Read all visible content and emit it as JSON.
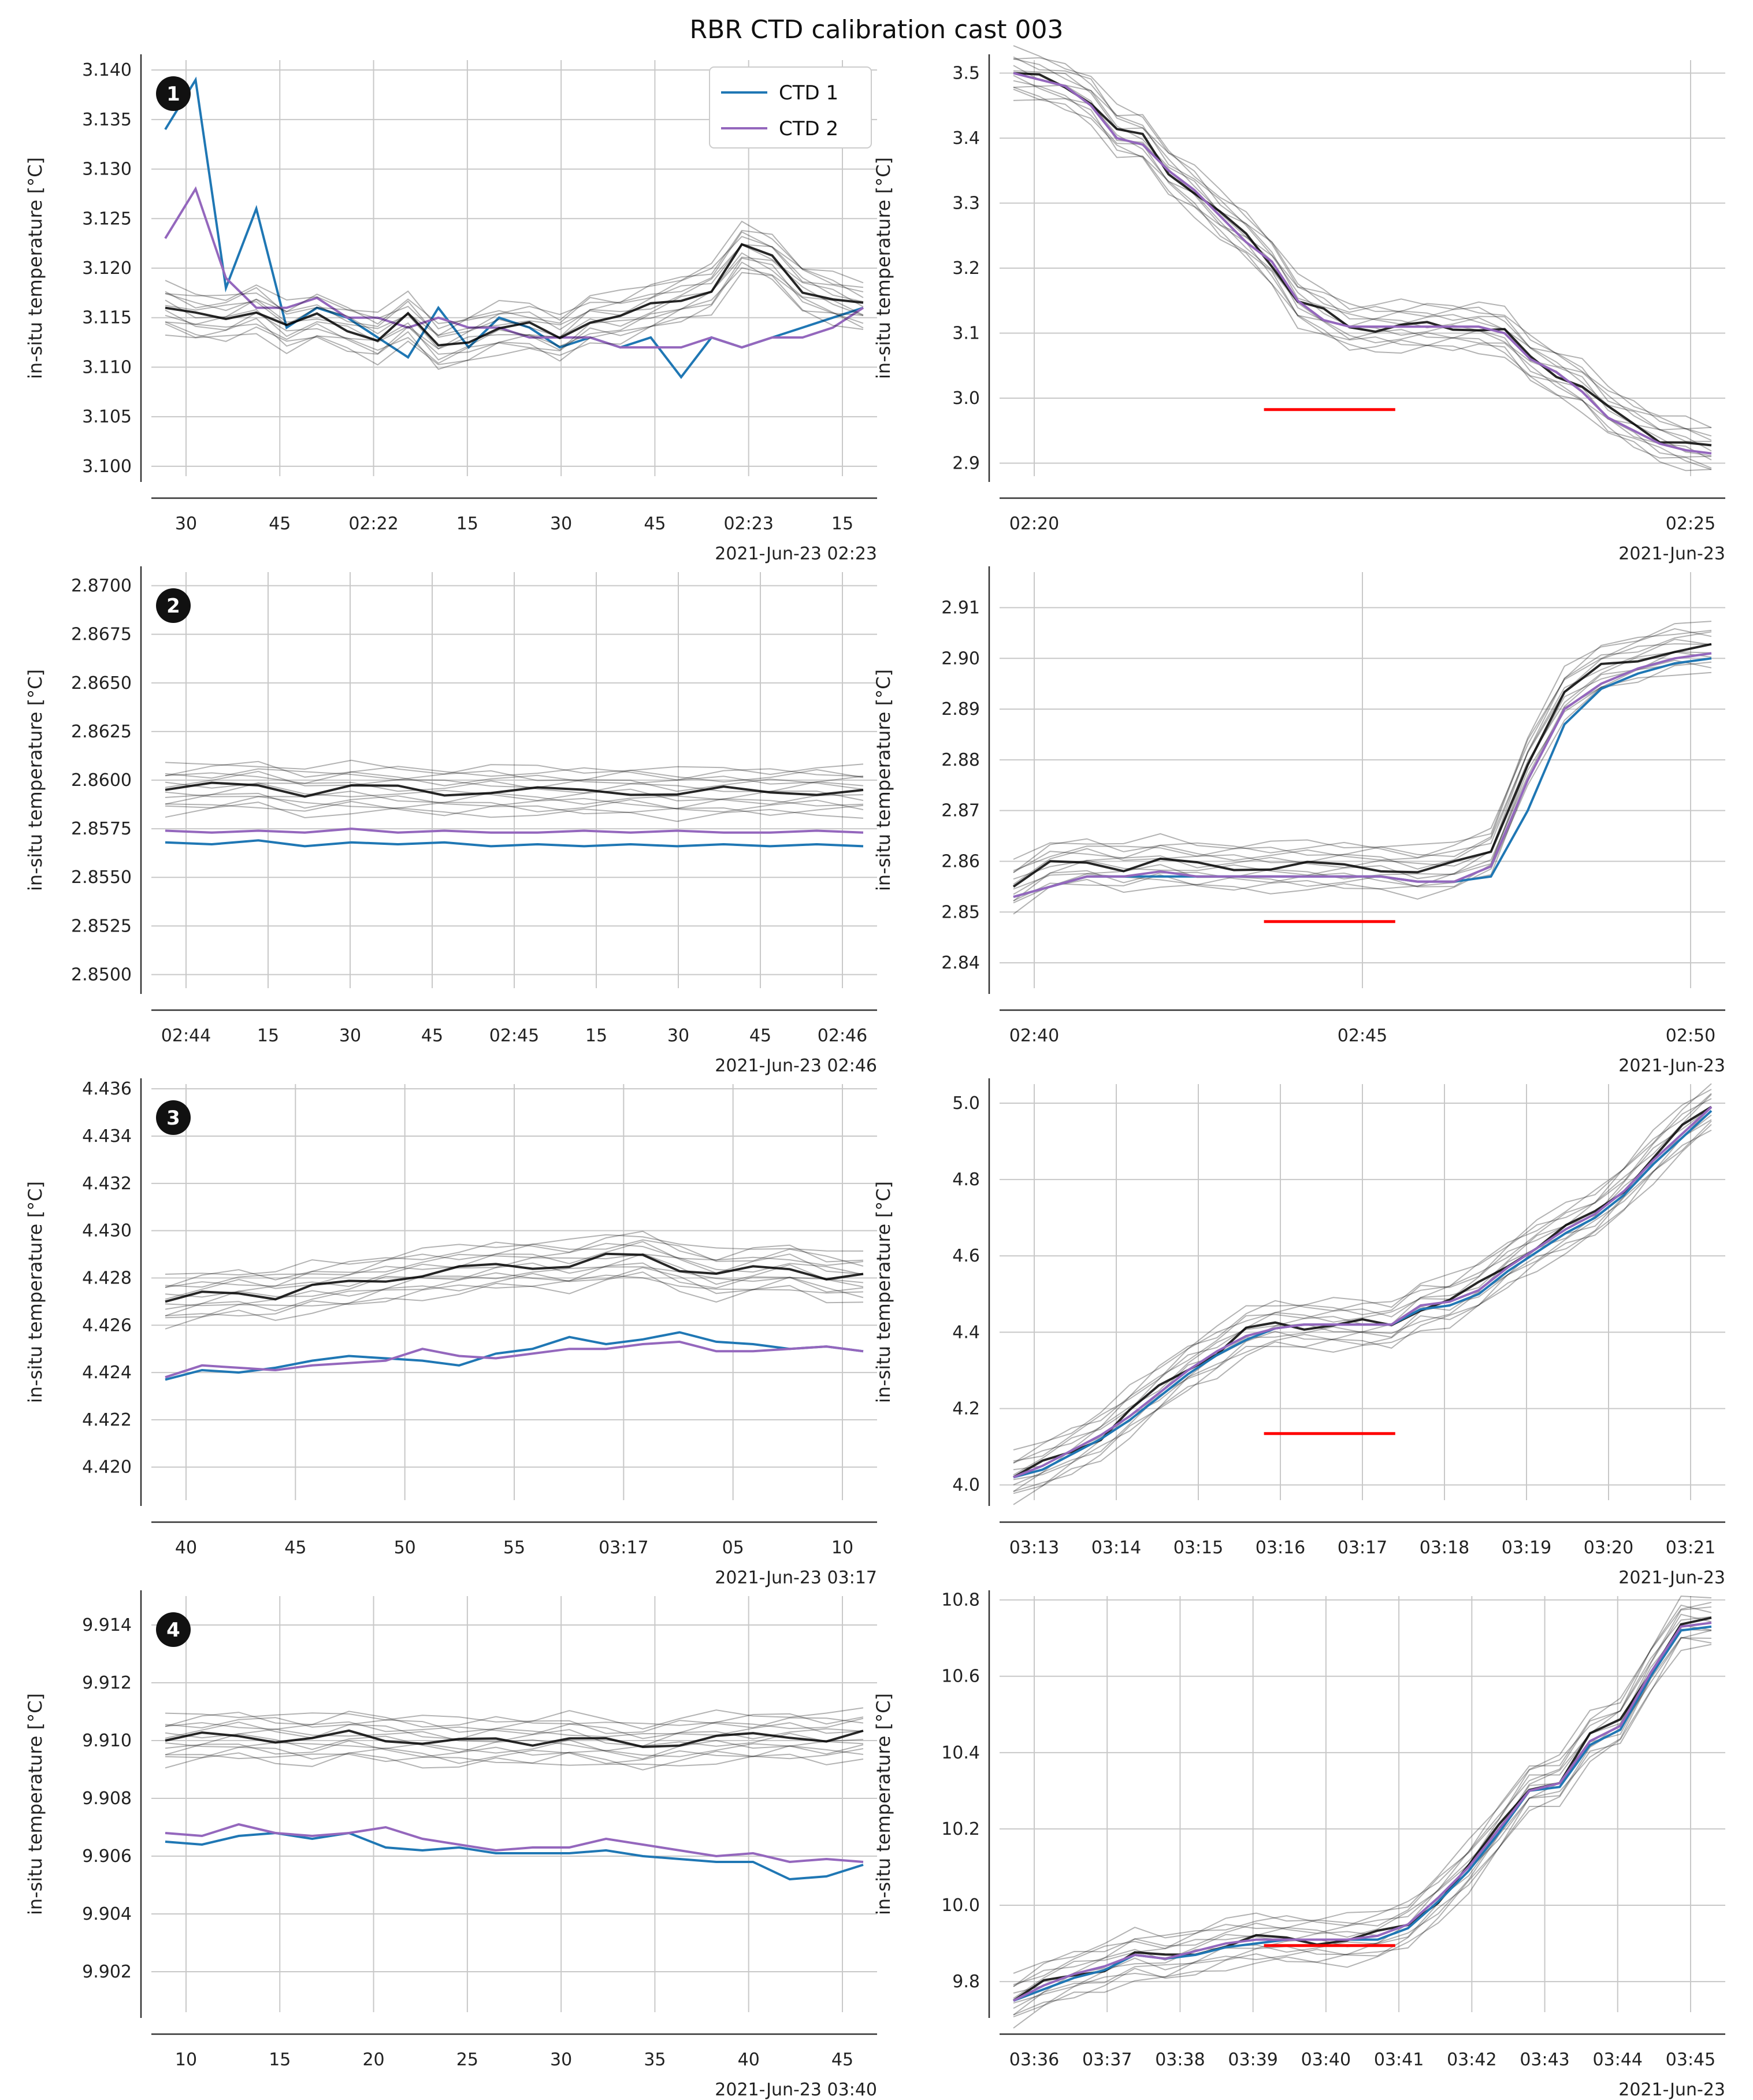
{
  "title": "RBR CTD calibration cast 003",
  "colors": {
    "ctd1": "#1f77b4",
    "ctd2": "#9467bd",
    "ref": "#000000",
    "window": "#ff0000",
    "grid": "#c8c8c8"
  },
  "legend": {
    "items": [
      "CTD 1",
      "CTD 2"
    ],
    "placement": "top-right of panel 1 left"
  },
  "chart_data": [
    {
      "type": "line",
      "panel": "1-left",
      "badge": "1",
      "ylabel": "in-situ temperature [°C]",
      "yticks": [
        "3.100",
        "3.105",
        "3.110",
        "3.115",
        "3.120",
        "3.125",
        "3.130",
        "3.135",
        "3.140"
      ],
      "ylim": [
        3.099,
        3.141
      ],
      "xticks": [
        "30",
        "45",
        "02:22",
        "15",
        "30",
        "45",
        "02:23",
        "15"
      ],
      "offset_label": "2021-Jun-23 02:23",
      "series": [
        {
          "name": "CTD 1",
          "values": [
            3.134,
            3.139,
            3.118,
            3.126,
            3.114,
            3.116,
            3.115,
            3.113,
            3.111,
            3.116,
            3.112,
            3.115,
            3.114,
            3.112,
            3.113,
            3.112,
            3.113,
            3.109,
            3.113,
            3.112,
            3.113,
            3.114,
            3.115,
            3.116
          ]
        },
        {
          "name": "CTD 2",
          "values": [
            3.123,
            3.128,
            3.119,
            3.116,
            3.116,
            3.117,
            3.115,
            3.115,
            3.114,
            3.115,
            3.114,
            3.114,
            3.113,
            3.113,
            3.113,
            3.112,
            3.112,
            3.112,
            3.113,
            3.112,
            3.113,
            3.113,
            3.114,
            3.116
          ]
        },
        {
          "name": "",
          "values": [
            3.116,
            3.115,
            3.115,
            3.116,
            3.114,
            3.115,
            3.114,
            3.113,
            3.115,
            3.112,
            3.113,
            3.114,
            3.114,
            3.113,
            3.115,
            3.115,
            3.116,
            3.117,
            3.118,
            3.122,
            3.121,
            3.118,
            3.117,
            3.116
          ]
        }
      ]
    },
    {
      "type": "line",
      "panel": "1-right",
      "ylabel": "in-situ temperature [°C]",
      "yticks": [
        "2.9",
        "3.0",
        "3.1",
        "3.2",
        "3.3",
        "3.4",
        "3.5"
      ],
      "ylim": [
        2.88,
        3.52
      ],
      "xticks": [
        "02:20",
        "02:25"
      ],
      "offset_label": "2021-Jun-23",
      "window": [
        2.3,
        2.1
      ],
      "series": [
        {
          "name": "",
          "values": [
            3.5,
            3.49,
            3.48,
            3.46,
            3.41,
            3.4,
            3.35,
            3.32,
            3.28,
            3.25,
            3.21,
            3.15,
            3.13,
            3.11,
            3.11,
            3.11,
            3.11,
            3.11,
            3.11,
            3.1,
            3.06,
            3.04,
            3.02,
            2.98,
            2.96,
            2.94,
            2.93,
            2.92
          ]
        },
        {
          "name": "CTD 2",
          "values": [
            3.5,
            3.49,
            3.48,
            3.45,
            3.4,
            3.39,
            3.35,
            3.32,
            3.28,
            3.24,
            3.21,
            3.15,
            3.12,
            3.11,
            3.11,
            3.11,
            3.11,
            3.11,
            3.11,
            3.1,
            3.06,
            3.04,
            3.01,
            2.97,
            2.95,
            2.93,
            2.92,
            2.915
          ]
        }
      ]
    },
    {
      "type": "line",
      "panel": "2-left",
      "badge": "2",
      "ylabel": "in-situ temperature [°C]",
      "yticks": [
        "2.8500",
        "2.8525",
        "2.8550",
        "2.8575",
        "2.8600",
        "2.8625",
        "2.8650",
        "2.8675",
        "2.8700"
      ],
      "ylim": [
        2.8493,
        2.8707
      ],
      "xticks": [
        "02:44",
        "15",
        "30",
        "45",
        "02:45",
        "15",
        "30",
        "45",
        "02:46"
      ],
      "offset_label": "2021-Jun-23 02:46",
      "series": [
        {
          "name": "CTD 1",
          "values": [
            2.8568,
            2.8567,
            2.8569,
            2.8566,
            2.8568,
            2.8567,
            2.8568,
            2.8566,
            2.8567,
            2.8566,
            2.8567,
            2.8566,
            2.8567,
            2.8566,
            2.8567,
            2.8566
          ]
        },
        {
          "name": "CTD 2",
          "values": [
            2.8574,
            2.8573,
            2.8574,
            2.8573,
            2.8575,
            2.8573,
            2.8574,
            2.8573,
            2.8573,
            2.8574,
            2.8573,
            2.8574,
            2.8573,
            2.8573,
            2.8574,
            2.8573
          ]
        },
        {
          "name": "",
          "values": [
            2.8595,
            2.8596,
            2.8598,
            2.8594,
            2.8596,
            2.8595,
            2.8594,
            2.8595,
            2.8594,
            2.8594,
            2.8595,
            2.8593,
            2.8594,
            2.8594,
            2.8595,
            2.8594
          ]
        }
      ]
    },
    {
      "type": "line",
      "panel": "2-right",
      "ylabel": "in-situ temperature [°C]",
      "yticks": [
        "2.84",
        "2.85",
        "2.86",
        "2.87",
        "2.88",
        "2.89",
        "2.90",
        "2.91"
      ],
      "ylim": [
        2.835,
        2.917
      ],
      "xticks": [
        "02:40",
        "02:45",
        "02:50"
      ],
      "offset_label": "2021-Jun-23",
      "window": [
        4.0,
        6.0
      ],
      "series": [
        {
          "name": "",
          "values": [
            2.855,
            2.859,
            2.86,
            2.859,
            2.86,
            2.859,
            2.859,
            2.859,
            2.859,
            2.859,
            2.859,
            2.858,
            2.859,
            2.862,
            2.88,
            2.893,
            2.898,
            2.9,
            2.902,
            2.902
          ]
        },
        {
          "name": "CTD 1",
          "values": [
            2.853,
            2.855,
            2.857,
            2.857,
            2.857,
            2.857,
            2.857,
            2.857,
            2.857,
            2.857,
            2.857,
            2.856,
            2.856,
            2.857,
            2.87,
            2.887,
            2.894,
            2.897,
            2.899,
            2.9
          ]
        },
        {
          "name": "CTD 2",
          "values": [
            2.853,
            2.855,
            2.857,
            2.857,
            2.858,
            2.857,
            2.857,
            2.857,
            2.857,
            2.857,
            2.857,
            2.856,
            2.856,
            2.859,
            2.876,
            2.89,
            2.895,
            2.898,
            2.9,
            2.901
          ]
        }
      ]
    },
    {
      "type": "line",
      "panel": "3-left",
      "badge": "3",
      "ylabel": "in-situ temperature [°C]",
      "yticks": [
        "4.420",
        "4.422",
        "4.424",
        "4.426",
        "4.428",
        "4.430",
        "4.432",
        "4.434",
        "4.436"
      ],
      "ylim": [
        4.4186,
        4.4362
      ],
      "xticks": [
        "40",
        "45",
        "50",
        "55",
        "03:17",
        "05",
        "10"
      ],
      "offset_label": "2021-Jun-23 03:17",
      "series": [
        {
          "name": "CTD 1",
          "values": [
            4.4237,
            4.4241,
            4.424,
            4.4242,
            4.4245,
            4.4247,
            4.4246,
            4.4245,
            4.4243,
            4.4248,
            4.425,
            4.4255,
            4.4252,
            4.4254,
            4.4257,
            4.4253,
            4.4252,
            4.425,
            4.4251,
            4.4249
          ]
        },
        {
          "name": "CTD 2",
          "values": [
            4.4238,
            4.4243,
            4.4242,
            4.4241,
            4.4243,
            4.4244,
            4.4245,
            4.425,
            4.4247,
            4.4246,
            4.4248,
            4.425,
            4.425,
            4.4252,
            4.4253,
            4.4249,
            4.4249,
            4.425,
            4.4251,
            4.4249
          ]
        },
        {
          "name": "",
          "values": [
            4.427,
            4.4272,
            4.4274,
            4.4273,
            4.4276,
            4.4277,
            4.428,
            4.4282,
            4.4283,
            4.4285,
            4.4286,
            4.4285,
            4.4288,
            4.429,
            4.4285,
            4.4281,
            4.4283,
            4.4285,
            4.4281,
            4.428
          ]
        }
      ]
    },
    {
      "type": "line",
      "panel": "3-right",
      "ylabel": "in-situ temperature [°C]",
      "yticks": [
        "4.0",
        "4.2",
        "4.4",
        "4.6",
        "4.8",
        "5.0"
      ],
      "ylim": [
        3.96,
        5.05
      ],
      "xticks": [
        "03:13",
        "03:14",
        "03:15",
        "03:16",
        "03:17",
        "03:18",
        "03:19",
        "03:20",
        "03:21"
      ],
      "offset_label": "2021-Jun-23",
      "window": [
        3.7,
        4.2
      ],
      "series": [
        {
          "name": "",
          "values": [
            4.02,
            4.05,
            4.09,
            4.13,
            4.19,
            4.25,
            4.31,
            4.35,
            4.4,
            4.42,
            4.42,
            4.42,
            4.42,
            4.42,
            4.47,
            4.48,
            4.52,
            4.58,
            4.63,
            4.67,
            4.71,
            4.78,
            4.86,
            4.93,
            4.99
          ]
        },
        {
          "name": "CTD 1",
          "values": [
            4.02,
            4.04,
            4.08,
            4.12,
            4.17,
            4.23,
            4.29,
            4.34,
            4.38,
            4.41,
            4.42,
            4.42,
            4.42,
            4.42,
            4.46,
            4.47,
            4.5,
            4.56,
            4.61,
            4.66,
            4.7,
            4.76,
            4.84,
            4.91,
            4.98
          ]
        },
        {
          "name": "CTD 2",
          "values": [
            4.02,
            4.05,
            4.09,
            4.13,
            4.18,
            4.24,
            4.3,
            4.35,
            4.39,
            4.41,
            4.42,
            4.42,
            4.42,
            4.42,
            4.47,
            4.48,
            4.51,
            4.57,
            4.62,
            4.67,
            4.71,
            4.77,
            4.85,
            4.92,
            4.99
          ]
        }
      ]
    },
    {
      "type": "line",
      "panel": "4-left",
      "badge": "4",
      "ylabel": "in-situ temperature [°C]",
      "yticks": [
        "9.902",
        "9.904",
        "9.906",
        "9.908",
        "9.910",
        "9.912",
        "9.914"
      ],
      "ylim": [
        9.9006,
        9.915
      ],
      "xticks": [
        "10",
        "15",
        "20",
        "25",
        "30",
        "35",
        "40",
        "45"
      ],
      "offset_label": "2021-Jun-23 03:40",
      "series": [
        {
          "name": "CTD 1",
          "values": [
            9.9065,
            9.9064,
            9.9067,
            9.9068,
            9.9066,
            9.9068,
            9.9063,
            9.9062,
            9.9063,
            9.9061,
            9.9061,
            9.9061,
            9.9062,
            9.906,
            9.9059,
            9.9058,
            9.9058,
            9.9052,
            9.9053,
            9.9057
          ]
        },
        {
          "name": "CTD 2",
          "values": [
            9.9068,
            9.9067,
            9.9071,
            9.9068,
            9.9067,
            9.9068,
            9.907,
            9.9066,
            9.9064,
            9.9062,
            9.9063,
            9.9063,
            9.9066,
            9.9064,
            9.9062,
            9.906,
            9.9061,
            9.9058,
            9.9059,
            9.9058
          ]
        },
        {
          "name": "",
          "values": [
            9.91,
            9.9101,
            9.9102,
            9.9101,
            9.91,
            9.9102,
            9.9101,
            9.91,
            9.9099,
            9.91,
            9.91,
            9.9101,
            9.9099,
            9.9098,
            9.91,
            9.9101,
            9.9101,
            9.9102,
            9.9101,
            9.9102
          ]
        }
      ]
    },
    {
      "type": "line",
      "panel": "4-right",
      "ylabel": "in-situ temperature [°C]",
      "yticks": [
        "9.8",
        "10.0",
        "10.2",
        "10.4",
        "10.6",
        "10.8"
      ],
      "ylim": [
        9.72,
        10.81
      ],
      "xticks": [
        "03:36",
        "03:37",
        "03:38",
        "03:39",
        "03:40",
        "03:41",
        "03:42",
        "03:43",
        "03:44",
        "03:45"
      ],
      "offset_label": "2021-Jun-23",
      "window": [
        4.1,
        4.7
      ],
      "series": [
        {
          "name": "",
          "values": [
            9.75,
            9.79,
            9.82,
            9.84,
            9.87,
            9.86,
            9.88,
            9.9,
            9.91,
            9.91,
            9.91,
            9.91,
            9.92,
            9.95,
            10.02,
            10.1,
            10.2,
            10.31,
            10.33,
            10.44,
            10.48,
            10.62,
            10.74,
            10.74
          ]
        },
        {
          "name": "CTD 1",
          "values": [
            9.75,
            9.78,
            9.81,
            9.83,
            9.87,
            9.86,
            9.87,
            9.89,
            9.9,
            9.91,
            9.91,
            9.91,
            9.91,
            9.94,
            10.01,
            10.09,
            10.19,
            10.3,
            10.31,
            10.42,
            10.46,
            10.6,
            10.72,
            10.73
          ]
        },
        {
          "name": "CTD 2",
          "values": [
            9.75,
            9.79,
            9.82,
            9.84,
            9.87,
            9.86,
            9.88,
            9.9,
            9.91,
            9.91,
            9.91,
            9.91,
            9.92,
            9.95,
            10.02,
            10.1,
            10.2,
            10.3,
            10.32,
            10.43,
            10.47,
            10.61,
            10.73,
            10.74
          ]
        }
      ]
    }
  ]
}
